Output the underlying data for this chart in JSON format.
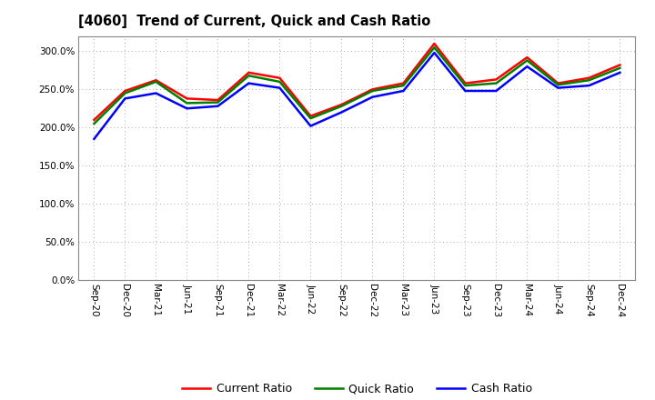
{
  "title": "[4060]  Trend of Current, Quick and Cash Ratio",
  "x_labels": [
    "Sep-20",
    "Dec-20",
    "Mar-21",
    "Jun-21",
    "Sep-21",
    "Dec-21",
    "Mar-22",
    "Jun-22",
    "Sep-22",
    "Dec-22",
    "Mar-23",
    "Jun-23",
    "Sep-23",
    "Dec-23",
    "Mar-24",
    "Jun-24",
    "Sep-24",
    "Dec-24"
  ],
  "current_ratio": [
    210,
    248,
    262,
    238,
    236,
    272,
    265,
    215,
    230,
    250,
    258,
    310,
    258,
    263,
    292,
    258,
    265,
    282
  ],
  "quick_ratio": [
    205,
    245,
    260,
    232,
    233,
    268,
    260,
    212,
    228,
    248,
    255,
    305,
    255,
    258,
    288,
    256,
    262,
    278
  ],
  "cash_ratio": [
    185,
    238,
    245,
    225,
    228,
    258,
    252,
    202,
    220,
    240,
    248,
    298,
    248,
    248,
    280,
    252,
    255,
    272
  ],
  "current_color": "#FF0000",
  "quick_color": "#008000",
  "cash_color": "#0000FF",
  "ylim": [
    0,
    320
  ],
  "yticks": [
    0,
    50,
    100,
    150,
    200,
    250,
    300
  ],
  "background_color": "#FFFFFF",
  "grid_color": "#AAAAAA",
  "line_width": 1.8,
  "legend_labels": [
    "Current Ratio",
    "Quick Ratio",
    "Cash Ratio"
  ]
}
